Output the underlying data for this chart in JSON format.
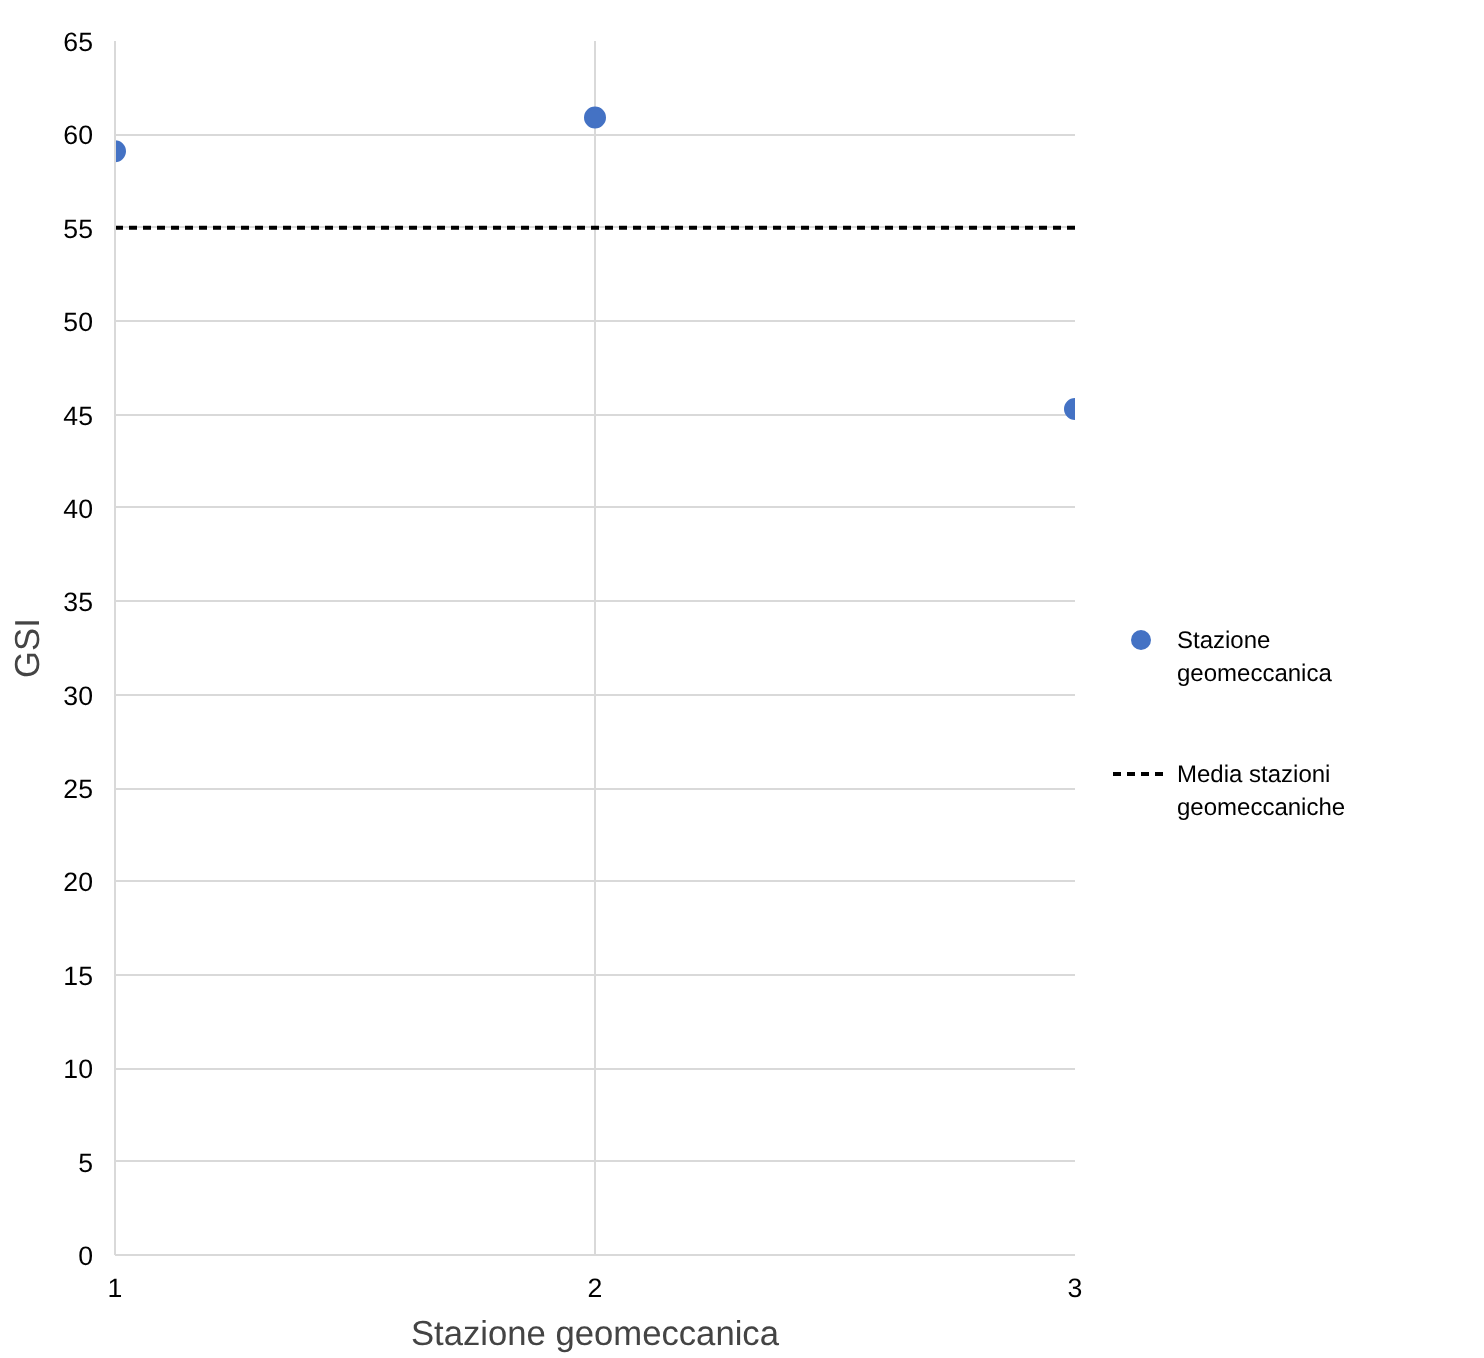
{
  "chart_data": {
    "type": "scatter",
    "xlabel": "Stazione geomeccanica",
    "ylabel": "GSI",
    "xlim": [
      1,
      3
    ],
    "xticks": [
      1,
      2,
      3
    ],
    "ylim": [
      0,
      65
    ],
    "yticks": [
      0,
      5,
      10,
      15,
      20,
      25,
      30,
      35,
      40,
      45,
      50,
      55,
      60,
      65
    ],
    "grid": true,
    "legend": "right",
    "series": [
      {
        "name": "Stazione geomeccanica",
        "marker": "circle",
        "color": "#4472c4",
        "x": [
          1,
          2,
          3
        ],
        "values": [
          59.1,
          60.9,
          45.3
        ]
      },
      {
        "name": "Media stazioni geomeccaniche",
        "type": "line",
        "line_style": "dashed",
        "color": "#000000",
        "x": [
          1,
          3
        ],
        "values": [
          55,
          55
        ]
      }
    ]
  }
}
